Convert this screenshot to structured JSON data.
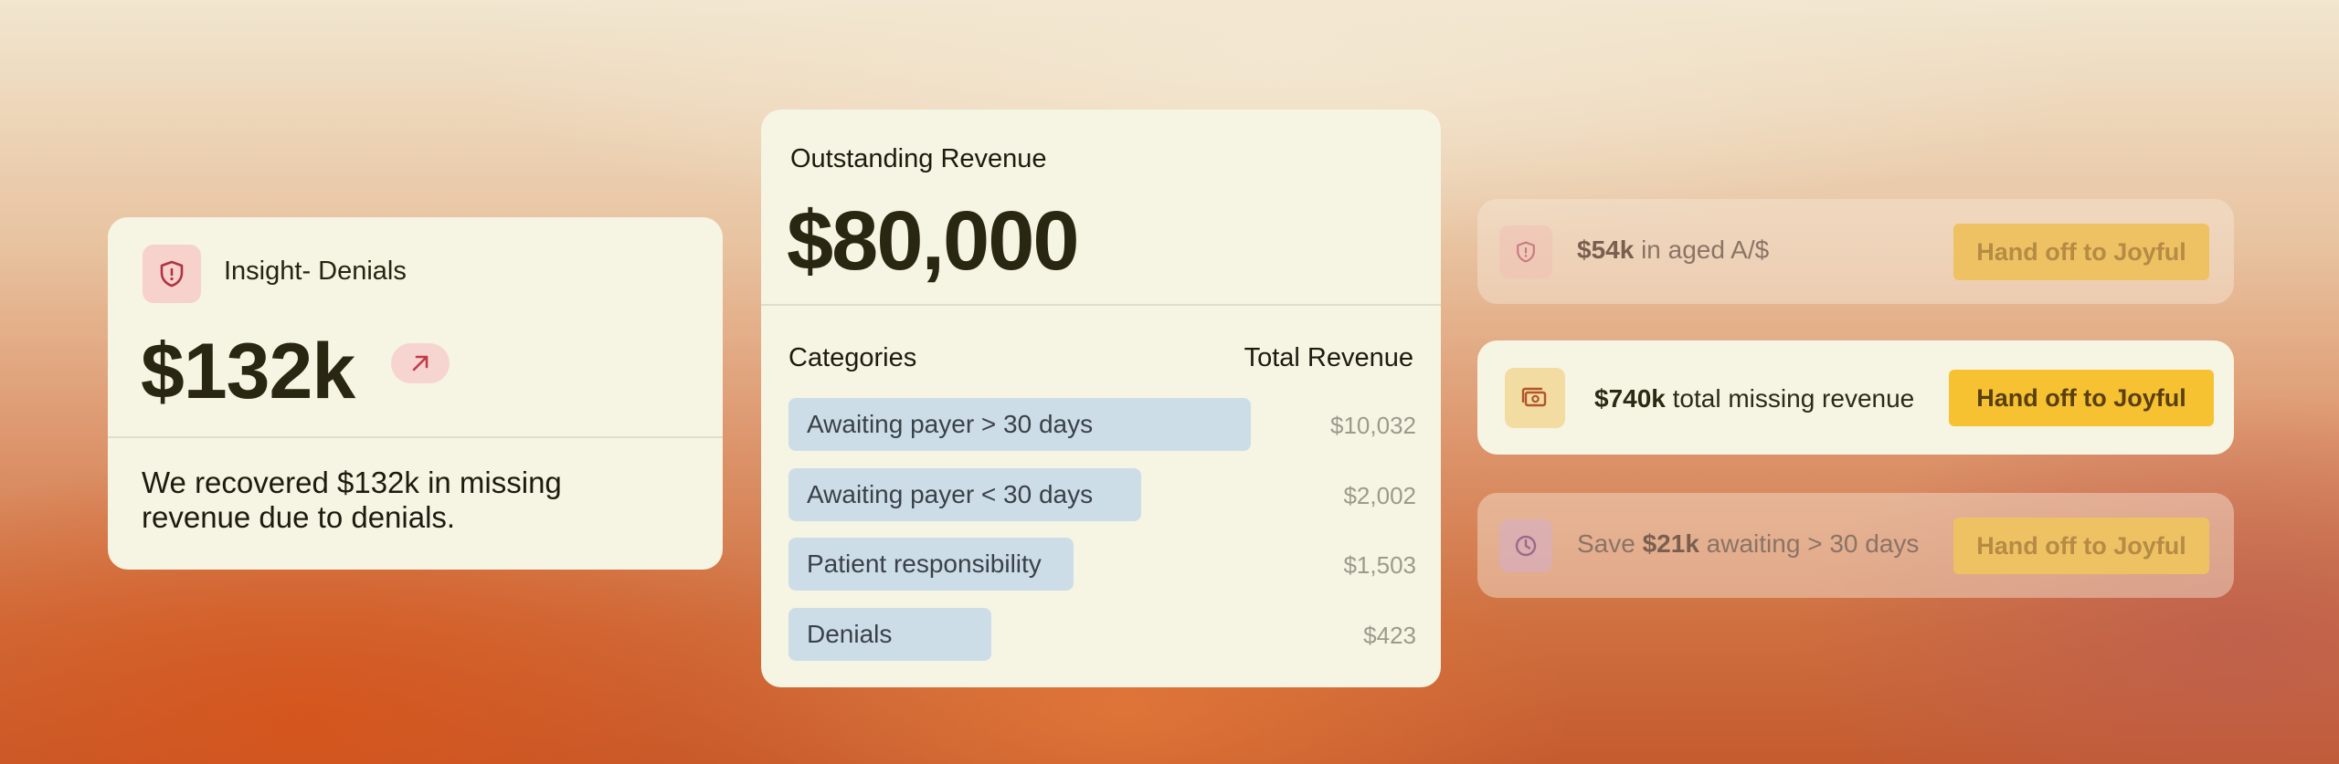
{
  "insight_card": {
    "title": "Insight- Denials",
    "amount": "$132k",
    "description": "We recovered $132k in missing revenue due to denials.",
    "icon": "shield-alert-icon",
    "trend_icon": "arrow-up-right-icon"
  },
  "revenue_card": {
    "title": "Outstanding Revenue",
    "amount": "$80,000",
    "column_left": "Categories",
    "column_right": "Total Revenue",
    "rows": [
      {
        "label": "Awaiting payer > 30 days",
        "value": "$10,032"
      },
      {
        "label": "Awaiting payer < 30 days",
        "value": "$2,002"
      },
      {
        "label": "Patient responsibility",
        "value": "$1,503"
      },
      {
        "label": "Denials",
        "value": "$423"
      }
    ]
  },
  "actions": [
    {
      "pre": "",
      "bold": "$54k",
      "post": " in aged A/$",
      "button": "Hand off to Joyful",
      "icon": "shield-alert-icon"
    },
    {
      "pre": "",
      "bold": "$740k",
      "post": " total missing revenue",
      "button": "Hand off to Joyful",
      "icon": "money-icon"
    },
    {
      "pre": "Save ",
      "bold": "$21k",
      "post": " awaiting > 30 days",
      "button": "Hand off to Joyful",
      "icon": "clock-icon"
    }
  ],
  "colors": {
    "card_bg": "#f6f4e3",
    "bar": "#cddde8",
    "button_active": "#f6c232",
    "accent_red": "#b03344"
  }
}
